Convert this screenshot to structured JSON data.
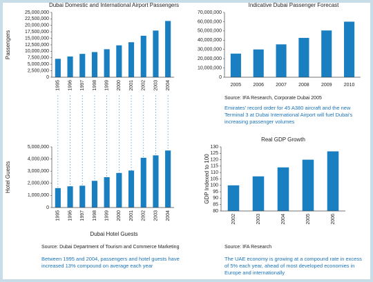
{
  "chart_data": [
    {
      "type": "bar",
      "title": "Dubai Domestic and International Airport Passengers",
      "ylabel": "Passengers",
      "categories": [
        "1995",
        "1996",
        "1997",
        "1998",
        "1999",
        "2000",
        "2001",
        "2002",
        "2003",
        "2004"
      ],
      "values": [
        7100000,
        8000000,
        9000000,
        9700000,
        10800000,
        12300000,
        13500000,
        16000000,
        18000000,
        21700000
      ],
      "color": "#1a7fc1",
      "ylim": [
        0,
        25000000
      ],
      "yticks": [
        0,
        {
          "value": 2500000,
          "label": "2,500,000"
        },
        {
          "value": 5000000,
          "label": "5,000,000"
        },
        {
          "value": 7500000,
          "label": "7,500,000"
        },
        {
          "value": 10000000,
          "label": "10,000,000"
        },
        {
          "value": 12500000,
          "label": "12,500,000"
        },
        {
          "value": 15000000,
          "label": "15,000,000"
        },
        {
          "value": 17500000,
          "label": "17,500,000"
        },
        {
          "value": 20000000,
          "label": "20,000,000"
        },
        {
          "value": 22500000,
          "label": "22,500,000"
        },
        {
          "value": 25000000,
          "label": "25,000,000"
        }
      ]
    },
    {
      "type": "bar",
      "title": "Indicative Dubai Passenger Forecast",
      "categories": [
        "2005",
        "2006",
        "2007",
        "2008",
        "2009",
        "2010"
      ],
      "values": [
        25500000,
        30000000,
        35500000,
        42500000,
        50500000,
        60000000
      ],
      "color": "#1a7fc1",
      "ylim": [
        0,
        70000000
      ],
      "yticks": [
        0,
        {
          "value": 10000000,
          "label": "10,000,000"
        },
        {
          "value": 20000000,
          "label": "20,000,000"
        },
        {
          "value": 30000000,
          "label": "30,000,000"
        },
        {
          "value": 40000000,
          "label": "40,000,000"
        },
        {
          "value": 50000000,
          "label": "50,000,000"
        },
        {
          "value": 60000000,
          "label": "60,000,000"
        },
        {
          "value": 70000000,
          "label": "70,000,000"
        }
      ],
      "source": "Source: IFA Research, Corporate Dubai 2005",
      "note": "Emirates' record order for 45 A380 aircraft and the new Terminal 3 at Dubai International Airport will fuel Dubai's increasing passenger volumes"
    },
    {
      "type": "bar",
      "title": "Dubai Hotel Guests",
      "ylabel": "Hotel Guests",
      "categories": [
        "1995",
        "1996",
        "1997",
        "1998",
        "1999",
        "2000",
        "2001",
        "2002",
        "2003",
        "2004"
      ],
      "values": [
        1600000,
        1750000,
        1800000,
        2200000,
        2500000,
        2850000,
        3050000,
        4100000,
        4300000,
        4700000
      ],
      "color": "#1a7fc1",
      "ylim": [
        0,
        5000000
      ],
      "yticks": [
        0,
        {
          "value": 1000000,
          "label": "1,000,000"
        },
        {
          "value": 2000000,
          "label": "2,000,000"
        },
        {
          "value": 3000000,
          "label": "3,000,000"
        },
        {
          "value": 4000000,
          "label": "4,000,000"
        },
        {
          "value": 5000000,
          "label": "5,000,000"
        }
      ],
      "source": "Source: Dubai Department of Tourism and Commerce Marketing",
      "note": "Between 1995 and 2004, passengers and hotel guests have increased 13% compound on average each year"
    },
    {
      "type": "bar",
      "title": "Real GDP Growth",
      "ylabel": "GDP Indexed to 100",
      "categories": [
        "2002",
        "2003",
        "2004",
        "2005",
        "2006"
      ],
      "values": [
        100,
        107,
        114,
        120,
        126.5
      ],
      "color": "#1a7fc1",
      "ylim": [
        80,
        130
      ],
      "yticks": [
        80,
        85,
        90,
        95,
        100,
        105,
        110,
        115,
        120,
        125,
        130
      ],
      "source": "Source: IFA Research",
      "note": "The UAE economy is growing at a compound rate in excess of 5% each year, ahead of most developed economies in Europe and internationally"
    }
  ]
}
